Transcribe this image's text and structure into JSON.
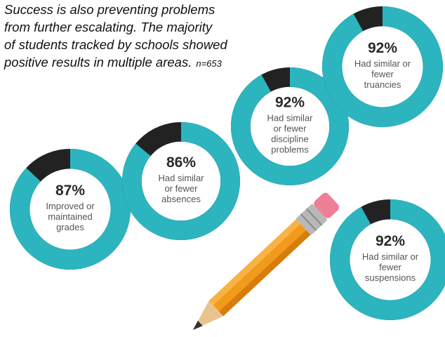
{
  "caption": {
    "lines": [
      "Success is also preventing problems",
      "from further escalating.  The majority",
      "of students tracked by schools showed",
      "positive results in multiple areas."
    ],
    "n": "n=653"
  },
  "chart_data": [
    {
      "type": "donut",
      "values": [
        87
      ],
      "value_labels": [
        "87%"
      ],
      "label_lines": [
        "Improved or",
        "maintained",
        "grades"
      ],
      "color": "#2cb4bf",
      "rest_color": "#222222"
    },
    {
      "type": "donut",
      "values": [
        86
      ],
      "value_labels": [
        "86%"
      ],
      "label_lines": [
        "Had similar",
        "or fewer",
        "absences"
      ],
      "color": "#2cb4bf",
      "rest_color": "#222222"
    },
    {
      "type": "donut",
      "values": [
        92
      ],
      "value_labels": [
        "92%"
      ],
      "label_lines": [
        "Had similar",
        "or fewer",
        "discipline",
        "problems"
      ],
      "color": "#2cb4bf",
      "rest_color": "#222222"
    },
    {
      "type": "donut",
      "values": [
        92
      ],
      "value_labels": [
        "92%"
      ],
      "label_lines": [
        "Had similar or",
        "fewer",
        "truancies"
      ],
      "color": "#2cb4bf",
      "rest_color": "#222222"
    },
    {
      "type": "donut",
      "values": [
        92
      ],
      "value_labels": [
        "92%"
      ],
      "label_lines": [
        "Had similar or",
        "fewer",
        "suspensions"
      ],
      "color": "#2cb4bf",
      "rest_color": "#222222"
    }
  ]
}
